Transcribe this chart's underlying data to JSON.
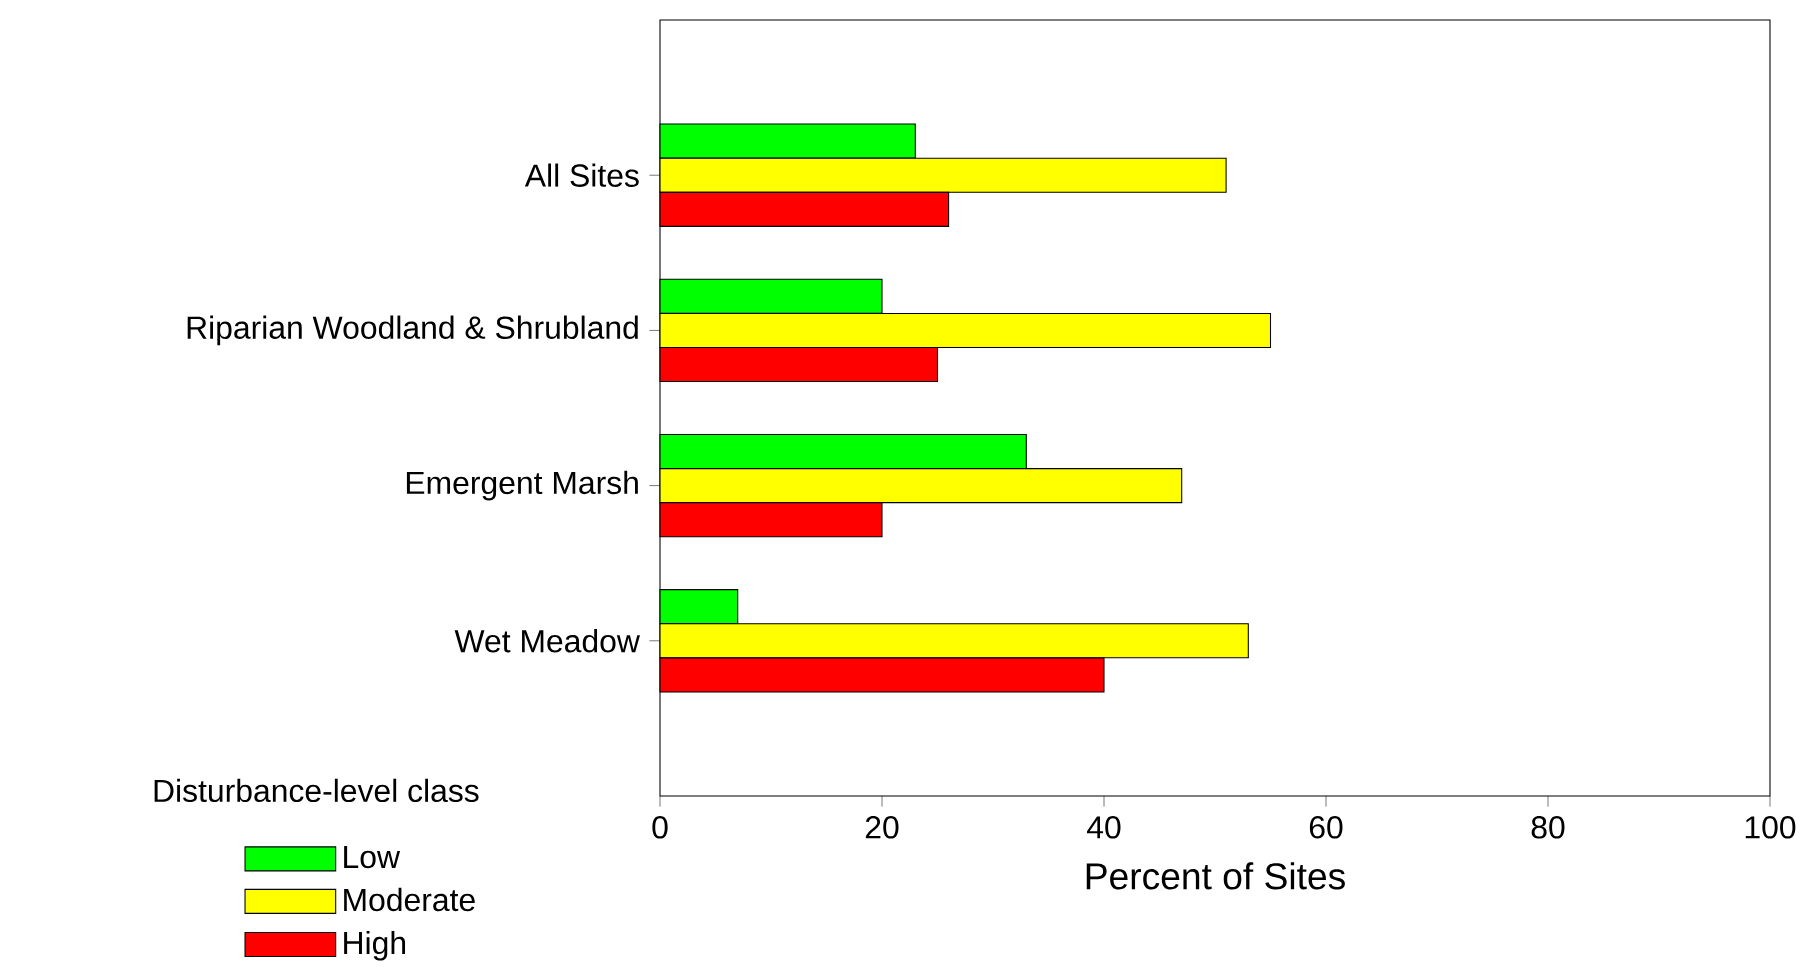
{
  "chart_data": {
    "type": "bar",
    "orientation": "horizontal",
    "xlabel": "Percent of Sites",
    "legend_title": "Disturbance-level class",
    "categories": [
      "All Sites",
      "Riparian Woodland & Shrubland",
      "Emergent Marsh",
      "Wet Meadow"
    ],
    "series": [
      {
        "name": "Low",
        "color": "#00ff00",
        "values": [
          23,
          20,
          33,
          7
        ]
      },
      {
        "name": "Moderate",
        "color": "#ffff00",
        "values": [
          51,
          55,
          47,
          53
        ]
      },
      {
        "name": "High",
        "color": "#ff0000",
        "values": [
          26,
          25,
          20,
          40
        ]
      }
    ],
    "xlim": [
      0,
      100
    ],
    "xticks": [
      0,
      20,
      40,
      60,
      80,
      100
    ],
    "grid": false,
    "legend": "bottom left"
  }
}
